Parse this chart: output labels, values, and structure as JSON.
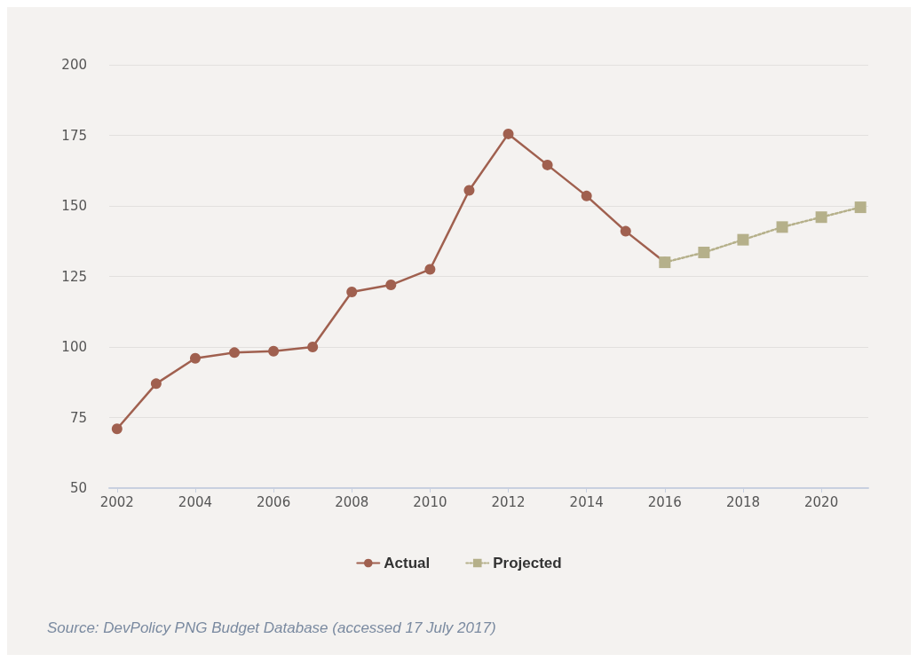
{
  "chart_data": {
    "type": "line",
    "ylim": [
      50,
      200
    ],
    "yticks": [
      50,
      75,
      100,
      125,
      150,
      175,
      200
    ],
    "xlim": [
      2001.8,
      2021.2
    ],
    "xticks": [
      2002,
      2004,
      2006,
      2008,
      2010,
      2012,
      2014,
      2016,
      2018,
      2020
    ],
    "grid": "y",
    "legend": "bottom",
    "series": [
      {
        "name": "Actual",
        "color": "#a0604f",
        "marker": "circle",
        "line_style": "solid",
        "x": [
          2002,
          2003,
          2004,
          2005,
          2006,
          2007,
          2008,
          2009,
          2010,
          2011,
          2012,
          2013,
          2014,
          2015,
          2016
        ],
        "values": [
          71,
          87,
          96,
          98,
          98.5,
          100,
          119.5,
          122,
          127.5,
          155.5,
          175.5,
          164.5,
          153.5,
          141,
          130
        ]
      },
      {
        "name": "Projected",
        "color": "#b5b08a",
        "marker": "square",
        "line_style": "dotted",
        "x": [
          2016,
          2017,
          2018,
          2019,
          2020,
          2021
        ],
        "values": [
          130,
          133.5,
          138,
          142.5,
          146,
          149.5
        ]
      }
    ],
    "annotations": [
      "Source: DevPolicy PNG Budget Database (accessed 17 July 2017)"
    ]
  }
}
